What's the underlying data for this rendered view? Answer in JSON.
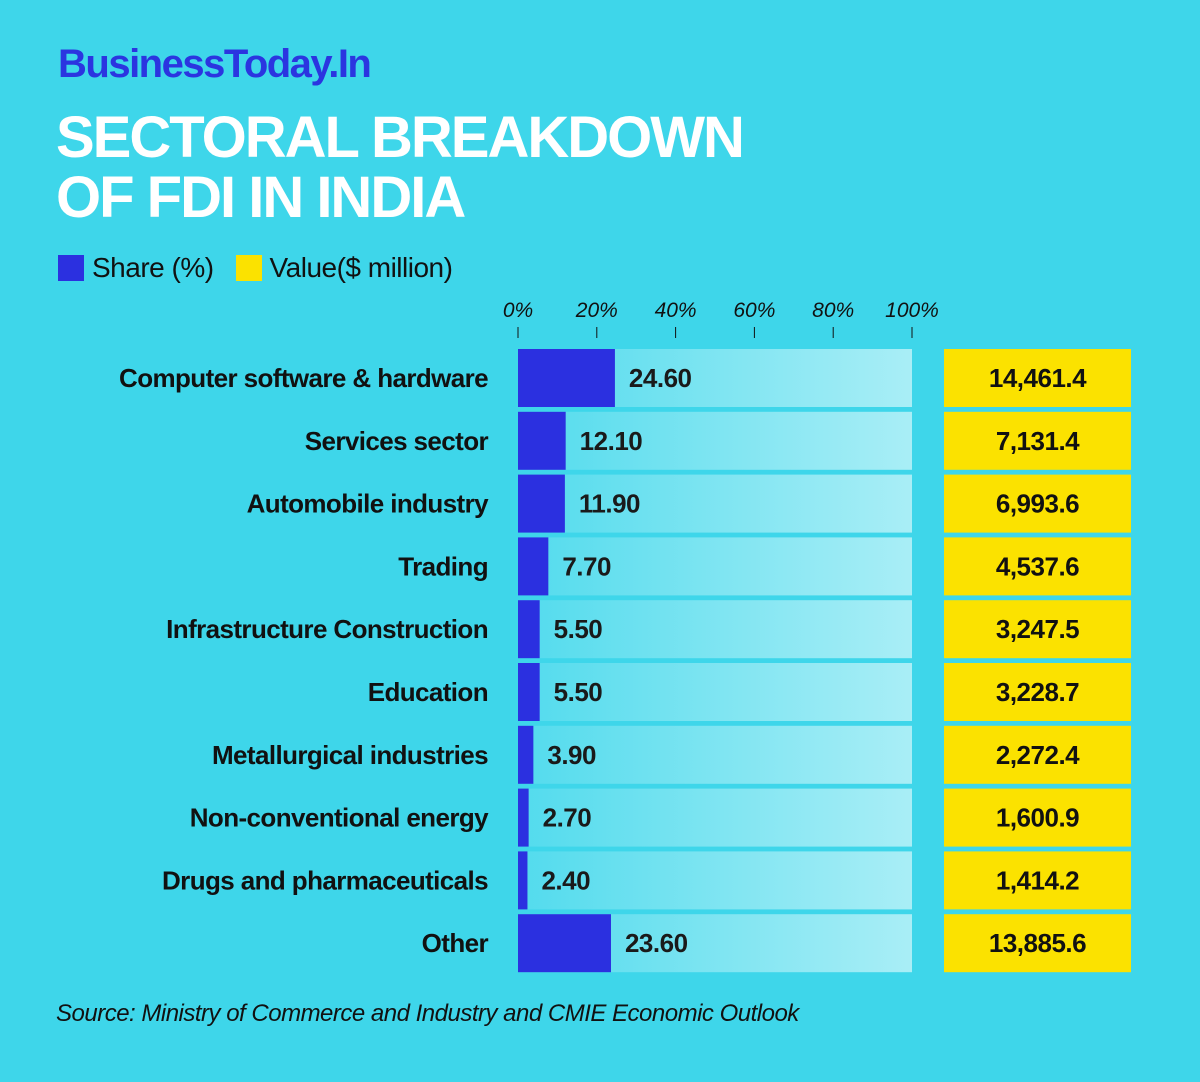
{
  "brand": "BusinessToday.In",
  "title_line1": "SECTORAL BREAKDOWN",
  "title_line2": "OF FDI IN INDIA",
  "legend": [
    {
      "label": "Share (%)",
      "color": "#2b30e0"
    },
    {
      "label": "Value($ million)",
      "color": "#fbe200"
    }
  ],
  "source": "Source: Ministry of Commerce and Industry and CMIE Economic Outlook",
  "colors": {
    "background": "#3ed6ea",
    "share_bar": "#2b30e0",
    "value_box": "#fbe200",
    "title": "#ffffff",
    "brand": "#2b35e0"
  },
  "chart_data": {
    "type": "bar",
    "orientation": "horizontal",
    "x_ticks": [
      "0%",
      "20%",
      "40%",
      "60%",
      "80%",
      "100%"
    ],
    "xlim": [
      0,
      100
    ],
    "categories": [
      "Computer software & hardware",
      "Services sector",
      "Automobile industry",
      "Trading",
      "Infrastructure Construction",
      "Education",
      "Metallurgical  industries",
      "Non-conventional  energy",
      "Drugs and  pharmaceuticals",
      "Other"
    ],
    "series": [
      {
        "name": "Share (%)",
        "values": [
          24.6,
          12.1,
          11.9,
          7.7,
          5.5,
          5.5,
          3.9,
          2.7,
          2.4,
          23.6
        ],
        "labels": [
          "24.60",
          "12.10",
          "11.90",
          "7.70",
          "5.50",
          "5.50",
          "3.90",
          "2.70",
          "2.40",
          "23.60"
        ]
      },
      {
        "name": "Value($ million)",
        "values": [
          14461.4,
          7131.4,
          6993.6,
          4537.6,
          3247.5,
          3228.7,
          2272.4,
          1600.9,
          1414.2,
          13885.6
        ],
        "labels": [
          "14,461.4",
          "7,131.4",
          "6,993.6",
          "4,537.6",
          "3,247.5",
          "3,228.7",
          "2,272.4",
          "1,600.9",
          "1,414.2",
          "13,885.6"
        ]
      }
    ]
  }
}
